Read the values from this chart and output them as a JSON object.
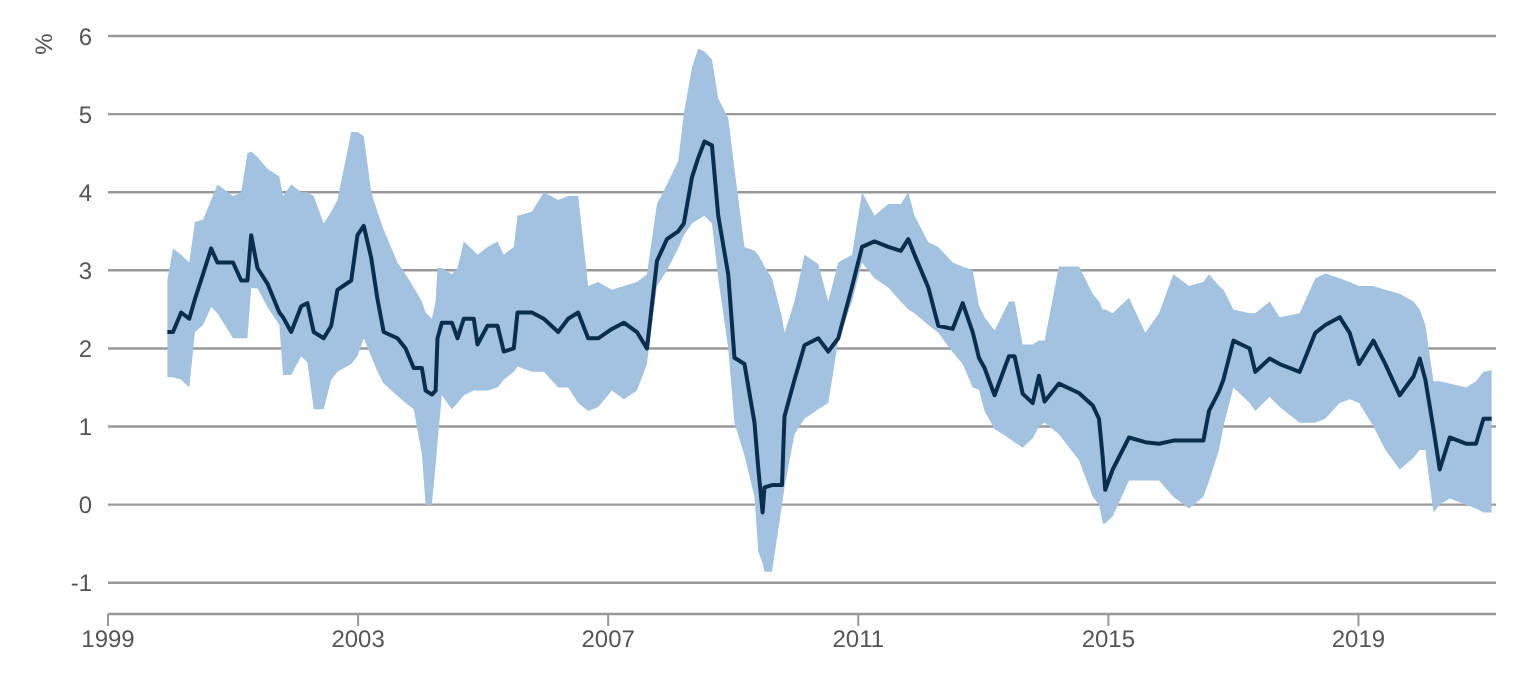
{
  "chart_data": {
    "type": "line",
    "ylabel": "%",
    "xlim": [
      1999,
      2021.2
    ],
    "xticks": [
      1999,
      2003,
      2007,
      2011,
      2015,
      2019
    ],
    "ylim": [
      -1.4,
      6
    ],
    "yticks": [
      -1,
      0,
      1,
      2,
      3,
      4,
      5,
      6
    ],
    "grid": "y",
    "series": [
      {
        "color": "#0b2e4f",
        "x": [
          1999.95,
          2000.04,
          2000.17,
          2000.3,
          2000.39,
          2000.52,
          2000.65,
          2000.75,
          2001.0,
          2001.13,
          2001.23,
          2001.29,
          2001.39,
          2001.55,
          2001.74,
          2001.8,
          2001.93,
          2002.09,
          2002.19,
          2002.29,
          2002.45,
          2002.57,
          2002.67,
          2002.89,
          2002.99,
          2003.09,
          2003.21,
          2003.31,
          2003.41,
          2003.63,
          2003.76,
          2003.89,
          2004.02,
          2004.08,
          2004.18,
          2004.24,
          2004.27,
          2004.34,
          2004.5,
          2004.59,
          2004.69,
          2004.85,
          2004.91,
          2005.07,
          2005.23,
          2005.33,
          2005.49,
          2005.55,
          2005.78,
          2005.97,
          2006.2,
          2006.36,
          2006.52,
          2006.68,
          2006.84,
          2007.06,
          2007.25,
          2007.46,
          2007.62,
          2007.78,
          2007.94,
          2008.12,
          2008.21,
          2008.34,
          2008.44,
          2008.54,
          2008.66,
          2008.76,
          2008.92,
          2009.02,
          2009.18,
          2009.34,
          2009.4,
          2009.47,
          2009.5,
          2009.62,
          2009.78,
          2009.82,
          2009.98,
          2010.14,
          2010.36,
          2010.52,
          2010.68,
          2010.9,
          2011.06,
          2011.26,
          2011.48,
          2011.68,
          2011.8,
          2011.9,
          2012.12,
          2012.28,
          2012.51,
          2012.67,
          2012.83,
          2012.93,
          2013.02,
          2013.18,
          2013.41,
          2013.5,
          2013.63,
          2013.79,
          2013.89,
          2013.98,
          2014.21,
          2014.53,
          2014.75,
          2014.85,
          2014.91,
          2014.95,
          2015.07,
          2015.33,
          2015.59,
          2015.81,
          2016.04,
          2016.29,
          2016.52,
          2016.61,
          2016.77,
          2016.84,
          2017.0,
          2017.26,
          2017.35,
          2017.58,
          2017.74,
          2018.06,
          2018.31,
          2018.47,
          2018.7,
          2018.86,
          2019.01,
          2019.24,
          2019.43,
          2019.66,
          2019.88,
          2019.98,
          2020.07,
          2020.2,
          2020.3,
          2020.46,
          2020.72,
          2020.88,
          2021.0,
          2021.13
        ],
        "values": [
          2.21,
          2.21,
          2.46,
          2.38,
          2.63,
          2.95,
          3.28,
          3.1,
          3.1,
          2.87,
          2.87,
          3.45,
          3.03,
          2.83,
          2.46,
          2.4,
          2.21,
          2.54,
          2.58,
          2.21,
          2.13,
          2.29,
          2.75,
          2.87,
          3.45,
          3.57,
          3.16,
          2.63,
          2.21,
          2.13,
          2.0,
          1.75,
          1.75,
          1.46,
          1.41,
          1.46,
          2.13,
          2.33,
          2.33,
          2.13,
          2.38,
          2.38,
          2.05,
          2.29,
          2.29,
          1.96,
          2.0,
          2.46,
          2.46,
          2.38,
          2.21,
          2.38,
          2.46,
          2.13,
          2.13,
          2.25,
          2.33,
          2.21,
          2.0,
          3.12,
          3.4,
          3.5,
          3.6,
          4.19,
          4.44,
          4.65,
          4.6,
          3.7,
          2.95,
          1.88,
          1.8,
          1.05,
          0.47,
          -0.1,
          0.22,
          0.25,
          0.25,
          1.13,
          1.6,
          2.04,
          2.13,
          1.96,
          2.13,
          2.79,
          3.3,
          3.37,
          3.3,
          3.25,
          3.4,
          3.2,
          2.78,
          2.29,
          2.25,
          2.58,
          2.21,
          1.88,
          1.75,
          1.4,
          1.9,
          1.9,
          1.42,
          1.3,
          1.65,
          1.32,
          1.55,
          1.43,
          1.27,
          1.1,
          0.6,
          0.19,
          0.45,
          0.86,
          0.8,
          0.78,
          0.82,
          0.82,
          0.82,
          1.2,
          1.45,
          1.6,
          2.1,
          2.0,
          1.7,
          1.87,
          1.8,
          1.7,
          2.2,
          2.3,
          2.4,
          2.2,
          1.8,
          2.1,
          1.8,
          1.4,
          1.64,
          1.87,
          1.6,
          0.97,
          0.45,
          0.86,
          0.78,
          0.78,
          1.1,
          1.1
        ],
        "lower": [
          1.63,
          1.63,
          1.6,
          1.5,
          2.21,
          2.3,
          2.53,
          2.45,
          2.13,
          2.13,
          2.13,
          2.77,
          2.77,
          2.53,
          2.3,
          1.66,
          1.66,
          1.9,
          1.82,
          1.22,
          1.22,
          1.6,
          1.7,
          1.8,
          1.9,
          2.13,
          1.9,
          1.7,
          1.55,
          1.39,
          1.3,
          1.22,
          0.65,
          0.0,
          0.0,
          0.5,
          0.8,
          1.4,
          1.22,
          1.3,
          1.4,
          1.46,
          1.46,
          1.46,
          1.5,
          1.6,
          1.7,
          1.77,
          1.7,
          1.7,
          1.5,
          1.5,
          1.3,
          1.2,
          1.25,
          1.46,
          1.35,
          1.46,
          1.8,
          2.8,
          3.0,
          3.28,
          3.45,
          3.6,
          3.65,
          3.7,
          3.6,
          2.9,
          2.0,
          1.05,
          0.63,
          0.1,
          -0.6,
          -0.75,
          -0.86,
          -0.86,
          0.0,
          0.22,
          0.9,
          1.1,
          1.22,
          1.3,
          2.1,
          2.6,
          3.1,
          2.9,
          2.78,
          2.6,
          2.5,
          2.45,
          2.3,
          2.2,
          1.95,
          1.8,
          1.5,
          1.47,
          1.2,
          0.97,
          0.85,
          0.8,
          0.73,
          0.85,
          1.0,
          1.05,
          0.9,
          0.57,
          0.1,
          0.0,
          -0.24,
          -0.24,
          -0.15,
          0.31,
          0.31,
          0.31,
          0.1,
          -0.05,
          0.1,
          0.3,
          0.7,
          1.0,
          1.5,
          1.3,
          1.2,
          1.38,
          1.25,
          1.05,
          1.05,
          1.1,
          1.3,
          1.35,
          1.3,
          1.0,
          0.7,
          0.45,
          0.6,
          0.7,
          0.7,
          -0.1,
          0.0,
          0.08,
          0.0,
          -0.05,
          -0.1,
          -0.1
        ],
        "upper": [
          2.88,
          3.28,
          3.2,
          3.1,
          3.62,
          3.65,
          3.9,
          4.1,
          3.95,
          4.0,
          4.5,
          4.52,
          4.45,
          4.3,
          4.2,
          3.95,
          4.1,
          4.0,
          4.0,
          3.95,
          3.6,
          3.75,
          3.9,
          4.77,
          4.77,
          4.72,
          4.0,
          3.75,
          3.52,
          3.1,
          2.95,
          2.78,
          2.6,
          2.46,
          2.38,
          2.6,
          3.03,
          3.03,
          2.95,
          3.03,
          3.37,
          3.25,
          3.2,
          3.3,
          3.37,
          3.2,
          3.3,
          3.7,
          3.75,
          4.0,
          3.9,
          3.95,
          3.95,
          2.8,
          2.85,
          2.75,
          2.8,
          2.85,
          2.95,
          3.85,
          4.1,
          4.4,
          5.0,
          5.6,
          5.84,
          5.8,
          5.7,
          5.2,
          4.95,
          4.3,
          3.3,
          3.25,
          3.2,
          3.1,
          3.05,
          2.9,
          2.4,
          2.2,
          2.6,
          3.2,
          3.08,
          2.6,
          3.1,
          3.2,
          4.0,
          3.7,
          3.85,
          3.85,
          4.0,
          3.7,
          3.36,
          3.3,
          3.1,
          3.05,
          3.0,
          2.55,
          2.4,
          2.23,
          2.6,
          2.6,
          2.05,
          2.05,
          2.1,
          2.1,
          3.05,
          3.05,
          2.7,
          2.6,
          2.5,
          2.5,
          2.45,
          2.65,
          2.2,
          2.45,
          2.95,
          2.8,
          2.85,
          2.95,
          2.8,
          2.75,
          2.5,
          2.45,
          2.45,
          2.6,
          2.4,
          2.45,
          2.9,
          2.96,
          2.9,
          2.85,
          2.8,
          2.8,
          2.75,
          2.7,
          2.6,
          2.5,
          2.3,
          1.58,
          1.58,
          1.55,
          1.5,
          1.58,
          1.7,
          1.72
        ]
      }
    ]
  }
}
